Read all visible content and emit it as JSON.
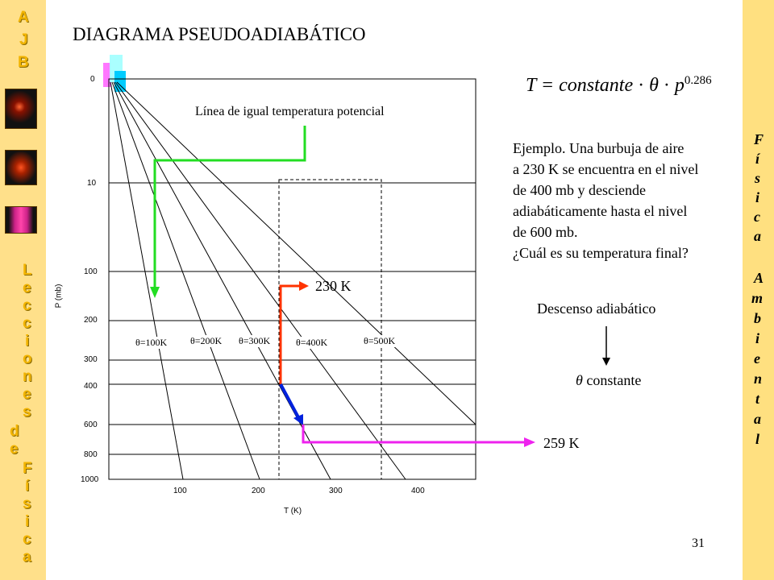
{
  "side": {
    "left_top_letters": [
      "A",
      "J",
      "B"
    ],
    "left_word1": [
      "L",
      "e",
      "c",
      "c",
      "i",
      "o",
      "n",
      "e",
      "s"
    ],
    "left_word2": [
      "d",
      "e"
    ],
    "left_word3": [
      "F",
      "í",
      "s",
      "i",
      "c",
      "a"
    ],
    "right_word1": [
      "F",
      "í",
      "s",
      "i",
      "c",
      "a"
    ],
    "right_word2": [
      "A",
      "m",
      "b",
      "i",
      "e",
      "n",
      "t",
      "a",
      "l"
    ]
  },
  "title": "DIAGRAMA PSEUDOADIABÁTICO",
  "formula": {
    "lhs": "T = constante",
    "dot": "·",
    "theta": "θ",
    "p": "p",
    "exponent": "0.286"
  },
  "diagram": {
    "pressure_ticks": [
      "0",
      "10",
      "100",
      "200",
      "300",
      "400",
      "600",
      "800",
      "1000"
    ],
    "temperature_ticks": [
      "100",
      "200",
      "300",
      "400"
    ],
    "y_axis_label": "P (mb)",
    "x_axis_label": "T (K)",
    "theta_labels": [
      "θ=100K",
      "θ=200K",
      "θ=300K",
      "θ=400K",
      "θ=500K"
    ],
    "potential_temp_line_label": "Línea de igual temperatura potencial",
    "start_temp": "230 K",
    "final_temp": "259 K"
  },
  "example": {
    "lines": [
      "Ejemplo. Una burbuja de aire",
      "a 230 K se encuentra en el nivel",
      "de 400 mb y desciende",
      "adiabáticamente hasta el nivel",
      "de 600 mb.",
      "¿Cuál es su temperatura final?"
    ]
  },
  "process": {
    "label": "Descenso adiabático",
    "theta_symbol": "θ",
    "constant_label": "constante"
  },
  "page_number": "31",
  "colors": {
    "side_band": "#ffe08a",
    "green_arrow": "#22dd22",
    "red_path": "#ff3300",
    "blue_path": "#0022dd",
    "magenta_arrow": "#ee22ee"
  }
}
